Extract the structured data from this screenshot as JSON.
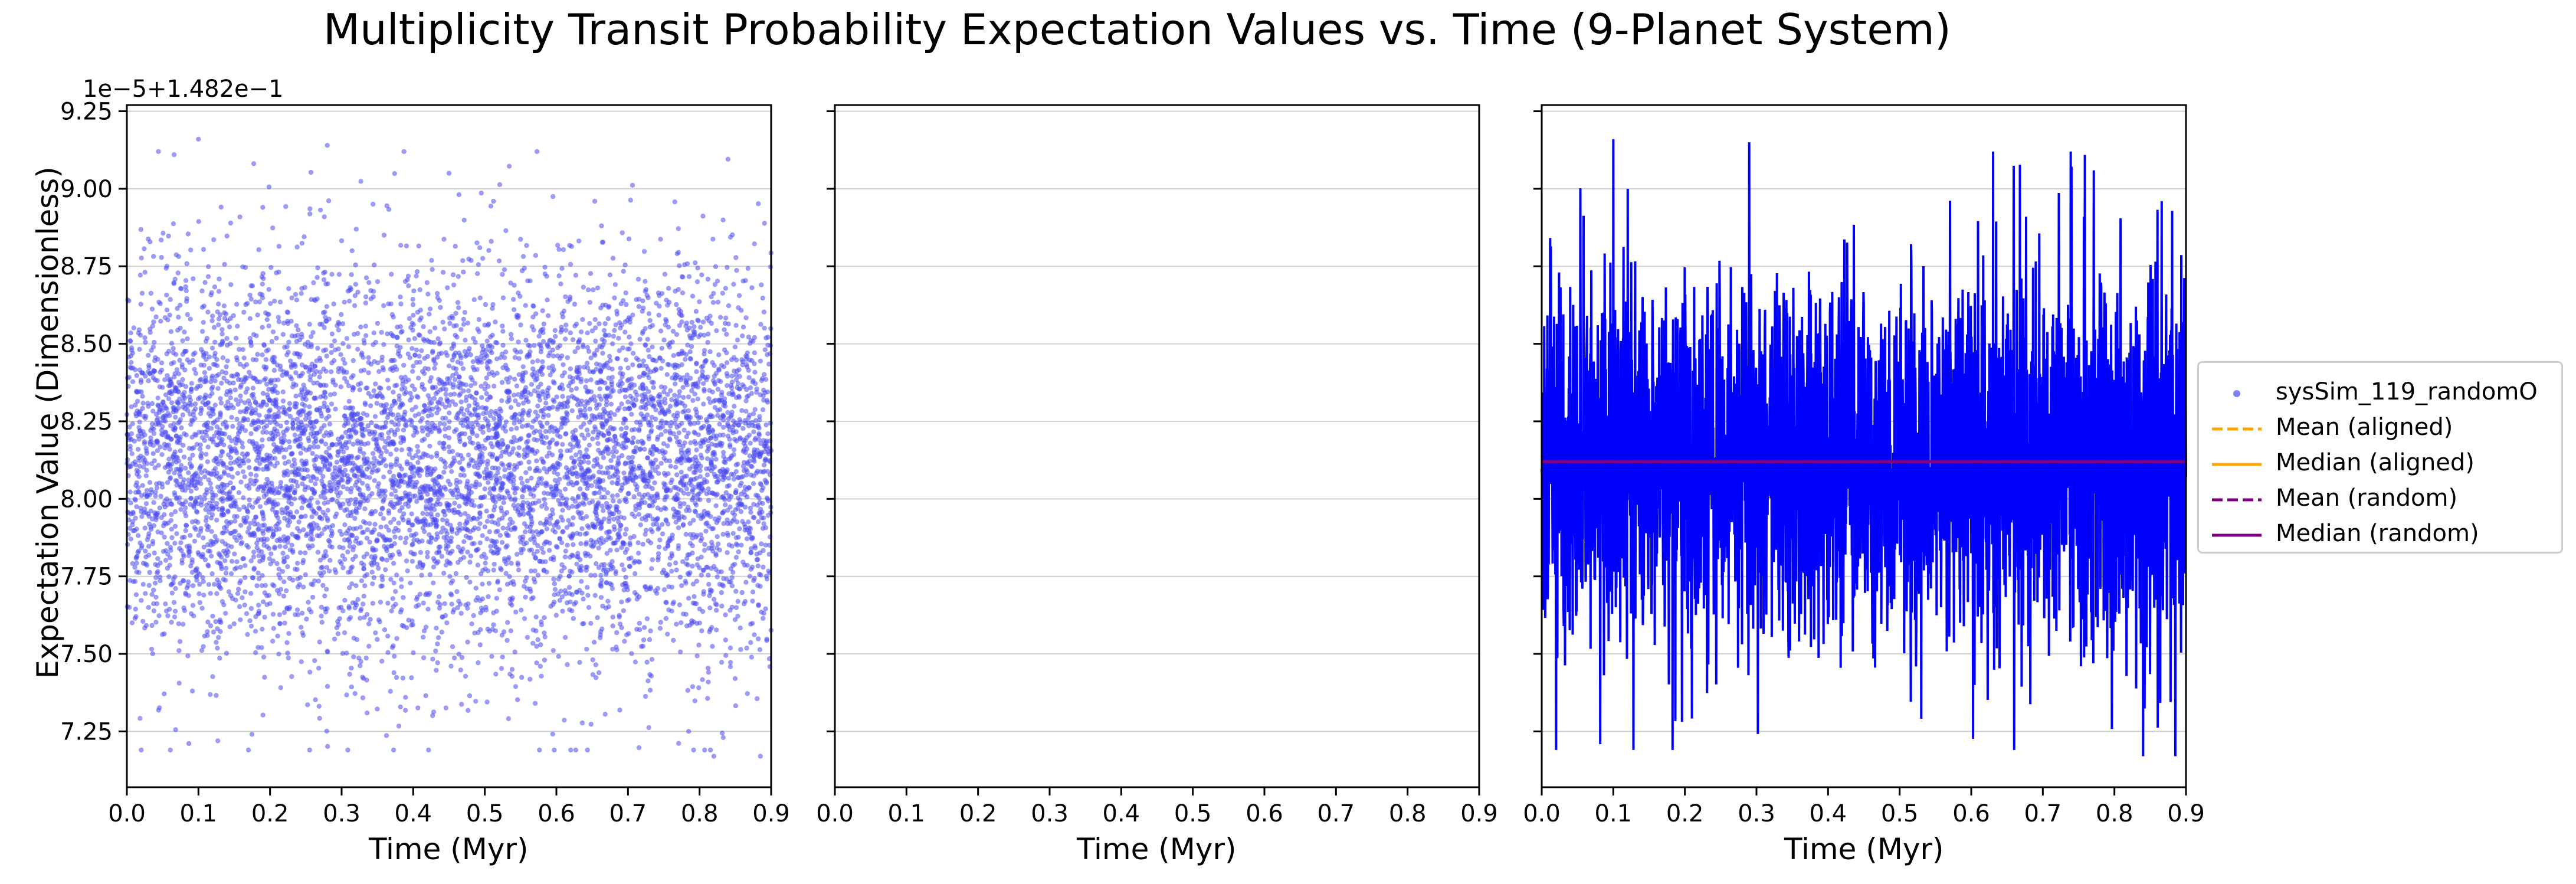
{
  "figure": {
    "title": "Multiplicity Transit Probability Expectation Values vs. Time (9-Planet System)",
    "ylabel": "Expectation Value (Dimensionless)",
    "offset_text": "1e−5+1.482e−1"
  },
  "legend": {
    "placement": "center-right outside",
    "entries": [
      {
        "label": "sysSim_119_randomO",
        "color": "#4b4bf0",
        "style": "points"
      },
      {
        "label": "Mean (aligned)",
        "color": "#ffa500",
        "style": "dashed"
      },
      {
        "label": "Median (aligned)",
        "color": "#ffa500",
        "style": "solid"
      },
      {
        "label": "Mean (random)",
        "color": "#800080",
        "style": "dashed"
      },
      {
        "label": "Median (random)",
        "color": "#800080",
        "style": "solid"
      }
    ]
  },
  "chart_data": [
    {
      "type": "scatter",
      "xlabel": "Time (Myr)",
      "ylabel": "Expectation Value (Dimensionless)",
      "xlim": [
        0.0,
        0.9
      ],
      "ylim": [
        7.07,
        9.27
      ],
      "y_offset": "1e−5+1.482e−1",
      "xticks": [
        "0.0",
        "0.1",
        "0.2",
        "0.3",
        "0.4",
        "0.5",
        "0.6",
        "0.7",
        "0.8",
        "0.9"
      ],
      "yticks": [
        "7.25",
        "7.50",
        "7.75",
        "8.00",
        "8.25",
        "8.50",
        "8.75",
        "9.00",
        "9.25"
      ],
      "grid": "horizontal",
      "series": [
        {
          "name": "sysSim_119_randomO",
          "color": "#4b4bf0",
          "count": 7000,
          "mean": 8.12,
          "spread": 0.3,
          "min": 7.17,
          "max": 9.16,
          "outliers": [
            [
              0.02,
              7.19
            ],
            [
              0.066,
              9.11
            ],
            [
              0.1,
              9.16
            ],
            [
              0.28,
              9.14
            ],
            [
              0.82,
              7.17
            ],
            [
              0.885,
              7.17
            ],
            [
              0.62,
              7.19
            ],
            [
              0.45,
              9.05
            ]
          ]
        }
      ]
    },
    {
      "type": "line",
      "xlabel": "Time (Myr)",
      "xlim": [
        0.0,
        0.9
      ],
      "ylim": [
        7.07,
        9.27
      ],
      "xticks": [
        "0.0",
        "0.1",
        "0.2",
        "0.3",
        "0.4",
        "0.5",
        "0.6",
        "0.7",
        "0.8",
        "0.9"
      ],
      "grid": "horizontal",
      "series": []
    },
    {
      "type": "line",
      "xlabel": "Time (Myr)",
      "xlim": [
        0.0,
        0.9
      ],
      "ylim": [
        7.07,
        9.27
      ],
      "xticks": [
        "0.0",
        "0.1",
        "0.2",
        "0.3",
        "0.4",
        "0.5",
        "0.6",
        "0.7",
        "0.8",
        "0.9"
      ],
      "grid": "horizontal",
      "series": [
        {
          "name": "sysSim_119_randomO",
          "color": "#0000ff",
          "style": "line",
          "count": 2600,
          "mean": 8.12,
          "spread": 0.3,
          "min": 7.17,
          "max": 9.16,
          "peaks": [
            [
              0.1,
              9.16
            ],
            [
              0.29,
              9.15
            ],
            [
              0.12,
              9.0
            ],
            [
              0.66,
              7.19
            ],
            [
              0.84,
              7.17
            ],
            [
              0.885,
              7.17
            ],
            [
              0.02,
              7.19
            ]
          ]
        },
        {
          "name": "Mean (random)",
          "color": "#800080",
          "style": "dashed",
          "value": 8.12
        },
        {
          "name": "Median (random)",
          "color": "#800080",
          "style": "solid",
          "value": 8.12
        }
      ]
    }
  ]
}
